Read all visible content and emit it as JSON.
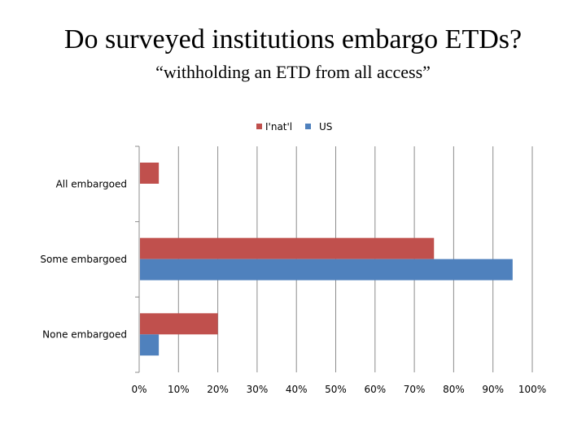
{
  "title": "Do surveyed institutions embargo ETDs?",
  "subtitle": "“withholding an ETD from all access”",
  "chart_data": {
    "type": "bar",
    "orientation": "horizontal",
    "categories": [
      "All embargoed",
      "Some embargoed",
      "None embargoed"
    ],
    "series": [
      {
        "name": "I'nat'l",
        "color": "#c0504d",
        "values": [
          5,
          75,
          20
        ]
      },
      {
        "name": "US",
        "color": "#4f81bd",
        "values": [
          0,
          95,
          5
        ]
      }
    ],
    "xlim": [
      0,
      100
    ],
    "x_ticks": [
      "0%",
      "10%",
      "20%",
      "30%",
      "40%",
      "50%",
      "60%",
      "70%",
      "80%",
      "90%",
      "100%"
    ],
    "grid": true,
    "legend": "top-center"
  }
}
